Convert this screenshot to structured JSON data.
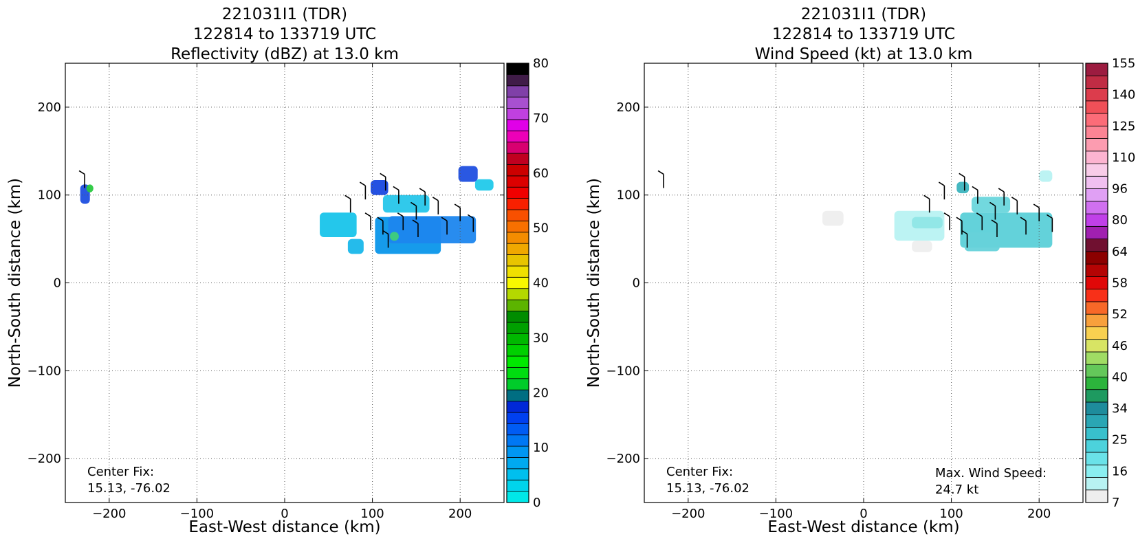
{
  "chart_data": [
    {
      "type": "heatmap",
      "title_lines": [
        "221031I1 (TDR)",
        "122814 to 133719 UTC",
        "Reflectivity (dBZ) at 13.0 km"
      ],
      "xlabel": "East-West distance (km)",
      "ylabel": "North-South distance (km)",
      "xlim": [
        -250,
        250
      ],
      "ylim": [
        -250,
        250
      ],
      "xticks": [
        -200,
        -100,
        0,
        100,
        200
      ],
      "yticks": [
        -200,
        -100,
        0,
        100,
        200
      ],
      "xtick_labels": [
        "−200",
        "−100",
        "0",
        "100",
        "200"
      ],
      "ytick_labels": [
        "−200",
        "−100",
        "0",
        "100",
        "200"
      ],
      "grid": true,
      "annotation_lines": [
        "Center Fix:",
        "15.13, -76.02"
      ],
      "colorbar": {
        "tick_labels": [
          "0",
          "10",
          "20",
          "30",
          "40",
          "50",
          "60",
          "70",
          "80"
        ],
        "colors": [
          "#00e8e8",
          "#00d4ec",
          "#00bfee",
          "#00a9f0",
          "#0096f2",
          "#0078f4",
          "#005cf4",
          "#0040f0",
          "#0028d8",
          "#006e82",
          "#00cc2a",
          "#00dd10",
          "#00e800",
          "#00d000",
          "#00b800",
          "#00a000",
          "#008c00",
          "#5cb400",
          "#b4d800",
          "#f8f800",
          "#f0e000",
          "#e8c400",
          "#f0a800",
          "#f48c00",
          "#f87000",
          "#f85000",
          "#f82000",
          "#f00000",
          "#dc0000",
          "#cc0000",
          "#c00020",
          "#d80070",
          "#ec00b8",
          "#e000e8",
          "#c040e0",
          "#a850d0",
          "#8040a8",
          "#401c48",
          "#000000"
        ]
      },
      "echo_regions_km": [
        {
          "x": [
            -233,
            -222
          ],
          "y": [
            90,
            112
          ],
          "color": "#1f4fe0"
        },
        {
          "x": [
            -226,
            -218
          ],
          "y": [
            103,
            112
          ],
          "color": "#29c93f"
        },
        {
          "x": [
            40,
            82
          ],
          "y": [
            52,
            80
          ],
          "color": "#18c4ea"
        },
        {
          "x": [
            72,
            90
          ],
          "y": [
            33,
            50
          ],
          "color": "#19b7ea"
        },
        {
          "x": [
            103,
            178
          ],
          "y": [
            33,
            75
          ],
          "color": "#0a96ea"
        },
        {
          "x": [
            118,
            218
          ],
          "y": [
            45,
            76
          ],
          "color": "#1c86ee"
        },
        {
          "x": [
            112,
            165
          ],
          "y": [
            80,
            100
          ],
          "color": "#26c6ea"
        },
        {
          "x": [
            98,
            118
          ],
          "y": [
            100,
            117
          ],
          "color": "#1848e0"
        },
        {
          "x": [
            198,
            220
          ],
          "y": [
            115,
            133
          ],
          "color": "#1f4fe0"
        },
        {
          "x": [
            217,
            238
          ],
          "y": [
            105,
            118
          ],
          "color": "#21c9ea"
        },
        {
          "x": [
            120,
            130
          ],
          "y": [
            48,
            58
          ],
          "color": "#3fcf7a"
        }
      ]
    },
    {
      "type": "heatmap",
      "title_lines": [
        "221031I1 (TDR)",
        "122814 to 133719 UTC",
        "Wind Speed (kt) at 13.0 km"
      ],
      "xlabel": "East-West distance (km)",
      "ylabel": "North-South distance (km)",
      "xlim": [
        -250,
        250
      ],
      "ylim": [
        -250,
        250
      ],
      "xticks": [
        -200,
        -100,
        0,
        100,
        200
      ],
      "yticks": [
        -200,
        -100,
        0,
        100,
        200
      ],
      "xtick_labels": [
        "−200",
        "−100",
        "0",
        "100",
        "200"
      ],
      "ytick_labels": [
        "−200",
        "−100",
        "0",
        "100",
        "200"
      ],
      "grid": true,
      "annotation_lines": [
        "Center Fix:",
        "15.13, -76.02"
      ],
      "max_wind_lines": [
        "Max. Wind Speed:",
        "24.7 kt"
      ],
      "colorbar": {
        "tick_labels": [
          "7",
          "16",
          "25",
          "34",
          "40",
          "46",
          "52",
          "58",
          "64",
          "80",
          "96",
          "110",
          "125",
          "140",
          "155"
        ],
        "colors": [
          "#eeeeee",
          "#b8f2f2",
          "#8aeef0",
          "#6ae2e8",
          "#4cd2dc",
          "#38c0cc",
          "#2aa6b4",
          "#1e8c9c",
          "#1e9a60",
          "#2cb43c",
          "#64c85a",
          "#a0dc64",
          "#d8e464",
          "#f8d050",
          "#f8a03c",
          "#f86828",
          "#f83018",
          "#e00808",
          "#b40404",
          "#8c0000",
          "#701030",
          "#a020b0",
          "#c040e8",
          "#d070f0",
          "#e0a0f4",
          "#f0c0f0",
          "#f8cce8",
          "#fcb4d0",
          "#fc9cb0",
          "#fc8494",
          "#fc6c78",
          "#f05058",
          "#dc3c4c",
          "#c02c44",
          "#9c1c40"
        ]
      },
      "echo_regions_km": [
        {
          "x": [
            -47,
            -23
          ],
          "y": [
            65,
            82
          ],
          "color": "#eeeeee"
        },
        {
          "x": [
            35,
            92
          ],
          "y": [
            48,
            82
          ],
          "color": "#b8f2f2"
        },
        {
          "x": [
            55,
            90
          ],
          "y": [
            62,
            75
          ],
          "color": "#8fe6e6"
        },
        {
          "x": [
            110,
            215
          ],
          "y": [
            40,
            80
          ],
          "color": "#5bd0d8"
        },
        {
          "x": [
            123,
            167
          ],
          "y": [
            80,
            98
          ],
          "color": "#6ad6dc"
        },
        {
          "x": [
            115,
            155
          ],
          "y": [
            36,
            58
          ],
          "color": "#66d2da"
        },
        {
          "x": [
            200,
            215
          ],
          "y": [
            115,
            128
          ],
          "color": "#b8f2f2"
        },
        {
          "x": [
            106,
            120
          ],
          "y": [
            102,
            115
          ],
          "color": "#3cb4be"
        },
        {
          "x": [
            55,
            78
          ],
          "y": [
            35,
            48
          ],
          "color": "#eeeeee"
        }
      ]
    }
  ]
}
